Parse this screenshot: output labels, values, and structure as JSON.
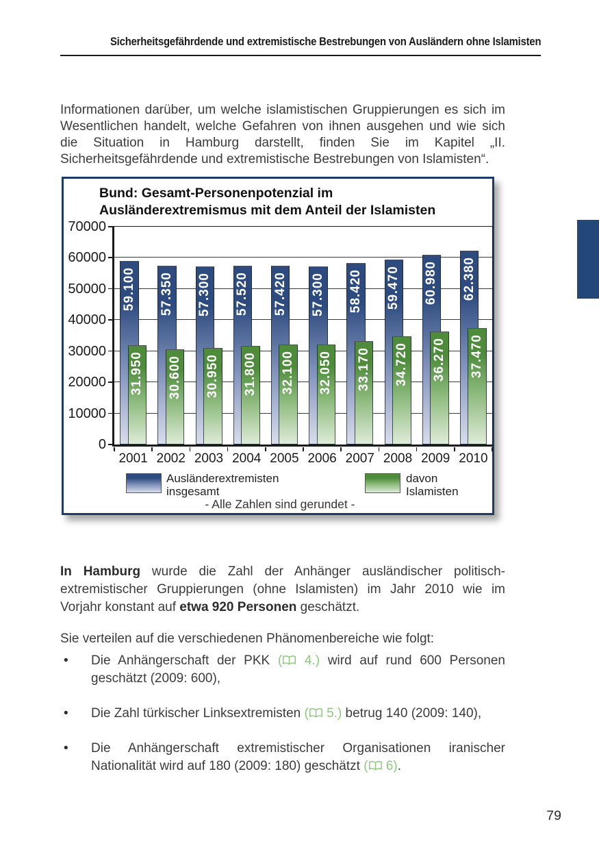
{
  "page": {
    "number": "79"
  },
  "header": {
    "title": "Sicherheitsgefährdende und extremistische Bestrebungen von Ausländern ohne Islamisten"
  },
  "intro": {
    "text": "Informationen darüber, um welche islamistischen Gruppierungen es sich im Wesentlichen handelt, welche Gefahren von ihnen ausgehen und wie sich die Situation in Hamburg darstellt, finden Sie im Kapitel „II. Sicherheitsgefährdende und extremistische Bestrebungen von Islamisten“."
  },
  "chart_data": {
    "type": "bar",
    "title": "Bund: Gesamt-Personenpotenzial im Ausländerextremismus mit dem Anteil der Islamisten",
    "title_line1": "Bund: Gesamt-Personenpotenzial im",
    "title_line2": "Ausländerextremismus mit dem Anteil der Islamisten",
    "categories": [
      "2001",
      "2002",
      "2003",
      "2004",
      "2005",
      "2006",
      "2007",
      "2008",
      "2009",
      "2010"
    ],
    "series": [
      {
        "name": "Ausländerextremisten insgesamt",
        "legend_lines": [
          "Ausländerextremisten",
          "insgesamt"
        ],
        "values": [
          59100,
          57350,
          57300,
          57520,
          57420,
          57300,
          58420,
          59470,
          60980,
          62380
        ],
        "labels": [
          "59.100",
          "57.350",
          "57.300",
          "57.520",
          "57.420",
          "57.300",
          "58.420",
          "59.470",
          "60.980",
          "62.380"
        ],
        "color_top": "#2d4b7e",
        "color_mid": "#7e90ba",
        "color_bottom": "#d8ddeb"
      },
      {
        "name": "davon Islamisten",
        "legend_lines": [
          "davon",
          "Islamisten"
        ],
        "values": [
          31950,
          30600,
          30950,
          31800,
          32100,
          32050,
          33170,
          34720,
          36270,
          37470
        ],
        "labels": [
          "31.950",
          "30.600",
          "30.950",
          "31.800",
          "32.100",
          "32.050",
          "33.170",
          "34.720",
          "36.270",
          "37.470"
        ],
        "color_top": "#4e8c3c",
        "color_mid": "#8fbc80",
        "color_bottom": "#dfeBD8"
      }
    ],
    "ylim": [
      0,
      70000
    ],
    "ytick_step": 10000,
    "ytick_labels": [
      "0",
      "10000",
      "20000",
      "30000",
      "40000",
      "50000",
      "60000",
      "70000"
    ],
    "grid": true,
    "legend_position": "bottom",
    "footnote": "- Alle Zahlen sind gerundet -"
  },
  "hamburg": {
    "bold1": "In Hamburg",
    "text1": " wurde die Zahl der Anhänger ausländischer politisch-extremistischer Gruppierungen (ohne Islamisten) im Jahr 2010 wie im Vorjahr konstant auf ",
    "bold2": "etwa 920 Personen",
    "text2": " geschätzt."
  },
  "distribution": {
    "text": "Sie verteilen auf die verschiedenen Phänomenbereiche wie folgt:"
  },
  "bullets": [
    {
      "segments": [
        {
          "t": "Die Anhängerschaft der PKK "
        },
        {
          "ref": "4.)"
        },
        {
          "t": " wird auf rund 600 Personen geschätzt (2009: 600),"
        }
      ]
    },
    {
      "segments": [
        {
          "t": "Die Zahl türkischer Linksextremisten "
        },
        {
          "ref": "5.)"
        },
        {
          "t": " betrug 140 (2009: 140),"
        }
      ]
    },
    {
      "segments": [
        {
          "t": "Die Anhängerschaft extremistischer Organisationen iranischer Nationalität wird auf 180 (2009: 180) geschätzt "
        },
        {
          "ref": "6)"
        },
        {
          "t": "."
        }
      ]
    }
  ],
  "colors": {
    "text": "#3b3b3b",
    "heading": "#1a1a1a",
    "chart_border": "#1f3a66",
    "side_tab": "#24477a",
    "ref_green": "#8dc87e",
    "bullet_marker": "•"
  }
}
